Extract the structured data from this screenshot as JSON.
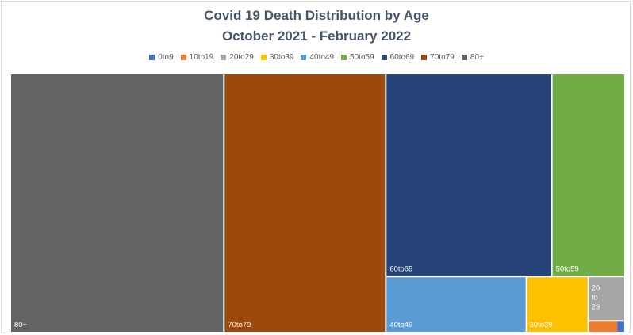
{
  "chart_data": {
    "type": "treemap",
    "title": "Covid 19 Death Distribution by Age",
    "subtitle": "October 2021 - February 2022",
    "legend_position": "top",
    "series": [
      {
        "name": "0to9",
        "color": "#4472c4",
        "value": 0.05
      },
      {
        "name": "10to19",
        "color": "#ed7d31",
        "value": 0.2
      },
      {
        "name": "20to29",
        "color": "#a5a5a5",
        "value": 1.0
      },
      {
        "name": "30to39",
        "color": "#ffc000",
        "value": 2.2
      },
      {
        "name": "40to49",
        "color": "#5b9bd5",
        "value": 5.0
      },
      {
        "name": "50to59",
        "color": "#70ad47",
        "value": 9.5
      },
      {
        "name": "60to69",
        "color": "#264478",
        "value": 22.0
      },
      {
        "name": "70to79",
        "color": "#9e480e",
        "value": 27.2
      },
      {
        "name": "80+",
        "color": "#636363",
        "value": 35.9
      }
    ],
    "tile_labels": {
      "80+": "80+",
      "70to79": "70to79",
      "60to69": "60to69",
      "50to59": "50to59",
      "40to49": "40to49",
      "30to39": "30to39",
      "20to29": [
        "20",
        "to",
        "29"
      ]
    }
  }
}
